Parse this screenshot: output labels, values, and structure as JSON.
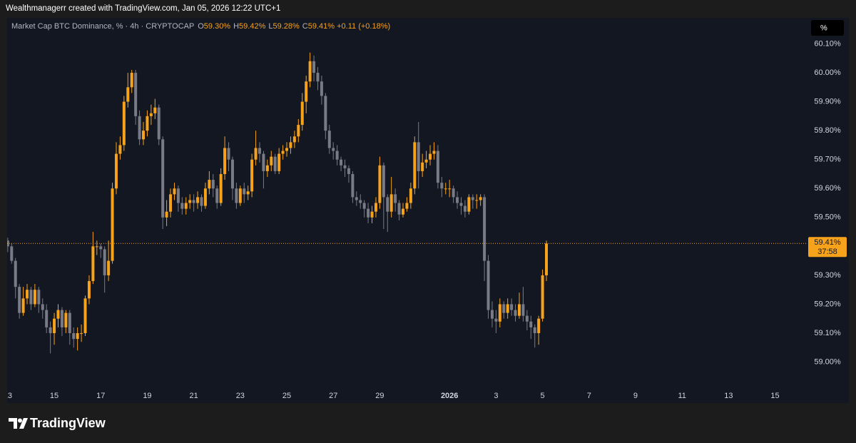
{
  "header": "Wealthmanagerr created with TradingView.com, Jan 05, 2026 12:22 UTC+1",
  "footer": "TradingView",
  "scale_button": "%",
  "chart_data": {
    "type": "candlestick",
    "title": "Market Cap BTC Dominance, % · 4h · CRYPTOCAP",
    "ohlc": [
      {
        "key": "O",
        "value": 59.3,
        "label": "59.30%"
      },
      {
        "key": "H",
        "value": 59.42,
        "label": "59.42%"
      },
      {
        "key": "L",
        "value": 59.28,
        "label": "59.28%"
      },
      {
        "key": "C",
        "value": 59.41,
        "label": "59.41%"
      }
    ],
    "change": {
      "value": 0.11,
      "label": "+0.11 (+0.18%)"
    },
    "last_price": {
      "value": 59.41,
      "label": "59.41%"
    },
    "countdown": "37:58",
    "up_color": "#f7a21b",
    "down_color": "#787b86",
    "grid": false,
    "xlim": [
      -2,
      206
    ],
    "ylim": [
      58.92,
      60.19
    ],
    "xticks": [
      {
        "value": 0,
        "label": "13"
      },
      {
        "value": 12,
        "label": "15"
      },
      {
        "value": 24,
        "label": "17"
      },
      {
        "value": 36,
        "label": "19"
      },
      {
        "value": 48,
        "label": "21"
      },
      {
        "value": 60,
        "label": "23"
      },
      {
        "value": 72,
        "label": "25"
      },
      {
        "value": 84,
        "label": "27"
      },
      {
        "value": 96,
        "label": "29"
      },
      {
        "value": 114,
        "label": "2026"
      },
      {
        "value": 126,
        "label": "3"
      },
      {
        "value": 138,
        "label": "5"
      },
      {
        "value": 150,
        "label": "7"
      },
      {
        "value": 162,
        "label": "9"
      },
      {
        "value": 174,
        "label": "11"
      },
      {
        "value": 186,
        "label": "13"
      },
      {
        "value": 198,
        "label": "15"
      }
    ],
    "yticks": [
      {
        "value": 59.0,
        "label": "59.00%"
      },
      {
        "value": 59.1,
        "label": "59.10%"
      },
      {
        "value": 59.2,
        "label": "59.20%"
      },
      {
        "value": 59.3,
        "label": "59.30%"
      },
      {
        "value": 59.5,
        "label": "59.50%"
      },
      {
        "value": 59.6,
        "label": "59.60%"
      },
      {
        "value": 59.7,
        "label": "59.70%"
      },
      {
        "value": 59.8,
        "label": "59.80%"
      },
      {
        "value": 59.9,
        "label": "59.90%"
      },
      {
        "value": 60.0,
        "label": "60.00%"
      },
      {
        "value": 60.1,
        "label": "60.10%"
      }
    ],
    "series": [
      {
        "name": "Market Cap BTC Dominance",
        "open": [
          59.42,
          59.4,
          59.35,
          59.26,
          59.17,
          59.22,
          59.25,
          59.2,
          59.25,
          59.2,
          59.18,
          59.12,
          59.1,
          59.15,
          59.18,
          59.12,
          59.17,
          59.1,
          59.08,
          59.1,
          59.1,
          59.22,
          59.28,
          59.4,
          59.4,
          59.39,
          59.3,
          59.35,
          59.6,
          59.72,
          59.75,
          59.9,
          59.95,
          60.0,
          59.85,
          59.77,
          59.8,
          59.85,
          59.86,
          59.88,
          59.77,
          59.5,
          59.52,
          59.58,
          59.6,
          59.55,
          59.53,
          59.55,
          59.56,
          59.55,
          59.57,
          59.54,
          59.6,
          59.63,
          59.6,
          59.55,
          59.65,
          59.74,
          59.7,
          59.6,
          59.55,
          59.6,
          59.58,
          59.59,
          59.7,
          59.74,
          59.72,
          59.66,
          59.68,
          59.71,
          59.66,
          59.72,
          59.73,
          59.74,
          59.76,
          59.78,
          59.82,
          59.9,
          59.97,
          60.04,
          60.0,
          59.97,
          59.92,
          59.8,
          59.74,
          59.73,
          59.7,
          59.68,
          59.67,
          59.65,
          59.57,
          59.56,
          59.55,
          59.53,
          59.5,
          59.52,
          59.55,
          59.68,
          59.57,
          59.52,
          59.58,
          59.55,
          59.51,
          59.53,
          59.55,
          59.6,
          59.76,
          59.66,
          59.69,
          59.7,
          59.72,
          59.73,
          59.62,
          59.6,
          59.6,
          59.6,
          59.57,
          59.55,
          59.54,
          59.52,
          59.57,
          59.56,
          59.56,
          59.57,
          59.35,
          59.18,
          59.15,
          59.14,
          59.2,
          59.17,
          59.2,
          59.18,
          59.16,
          59.2,
          59.16,
          59.14,
          59.12,
          59.1,
          59.15,
          59.3
        ],
        "high": [
          59.43,
          59.41,
          59.36,
          59.27,
          59.26,
          59.27,
          59.26,
          59.27,
          59.26,
          59.22,
          59.2,
          59.14,
          59.17,
          59.2,
          59.19,
          59.18,
          59.18,
          59.12,
          59.12,
          59.13,
          59.23,
          59.3,
          59.45,
          59.42,
          59.41,
          59.4,
          59.42,
          59.62,
          59.76,
          59.78,
          59.92,
          60.0,
          60.01,
          60.01,
          59.87,
          59.83,
          59.87,
          59.89,
          59.91,
          59.89,
          59.78,
          59.56,
          59.6,
          59.62,
          59.61,
          59.57,
          59.57,
          59.58,
          59.58,
          59.59,
          59.58,
          59.62,
          59.66,
          59.65,
          59.61,
          59.67,
          59.78,
          59.76,
          59.71,
          59.62,
          59.61,
          59.62,
          59.61,
          59.72,
          59.8,
          59.76,
          59.73,
          59.7,
          59.73,
          59.72,
          59.74,
          59.75,
          59.76,
          59.78,
          59.8,
          59.84,
          59.93,
          59.99,
          60.07,
          60.06,
          60.02,
          59.99,
          59.93,
          59.82,
          59.76,
          59.75,
          59.71,
          59.7,
          59.68,
          59.66,
          59.59,
          59.58,
          59.56,
          59.55,
          59.54,
          59.57,
          59.71,
          59.69,
          59.58,
          59.64,
          59.6,
          59.56,
          59.55,
          59.57,
          59.62,
          59.78,
          59.83,
          59.72,
          59.73,
          59.75,
          59.76,
          59.75,
          59.64,
          59.62,
          59.63,
          59.61,
          59.59,
          59.57,
          59.56,
          59.58,
          59.58,
          59.58,
          59.58,
          59.58,
          59.37,
          59.21,
          59.18,
          59.22,
          59.21,
          59.22,
          59.22,
          59.2,
          59.24,
          59.26,
          59.18,
          59.16,
          59.13,
          59.16,
          59.32,
          59.42
        ],
        "low": [
          59.38,
          59.34,
          59.22,
          59.15,
          59.16,
          59.2,
          59.18,
          59.19,
          59.17,
          59.15,
          59.1,
          59.03,
          59.06,
          59.12,
          59.09,
          59.1,
          59.06,
          59.05,
          59.04,
          59.07,
          59.09,
          59.2,
          59.27,
          59.37,
          59.36,
          59.24,
          59.28,
          59.34,
          59.58,
          59.7,
          59.73,
          59.88,
          59.93,
          59.82,
          59.75,
          59.75,
          59.78,
          59.82,
          59.84,
          59.75,
          59.46,
          59.47,
          59.5,
          59.56,
          59.52,
          59.51,
          59.51,
          59.53,
          59.52,
          59.53,
          59.52,
          59.53,
          59.58,
          59.57,
          59.53,
          59.54,
          59.63,
          59.66,
          59.56,
          59.53,
          59.54,
          59.55,
          59.56,
          59.57,
          59.68,
          59.69,
          59.6,
          59.64,
          59.66,
          59.65,
          59.65,
          59.7,
          59.71,
          59.72,
          59.74,
          59.76,
          59.8,
          59.86,
          59.95,
          59.97,
          59.94,
          59.89,
          59.77,
          59.72,
          59.7,
          59.68,
          59.66,
          59.64,
          59.62,
          59.55,
          59.54,
          59.53,
          59.5,
          59.48,
          59.48,
          59.5,
          59.53,
          59.46,
          59.45,
          59.5,
          59.52,
          59.49,
          59.5,
          59.52,
          59.53,
          59.58,
          59.6,
          59.64,
          59.67,
          59.68,
          59.7,
          59.6,
          59.57,
          59.58,
          59.57,
          59.55,
          59.53,
          59.51,
          59.5,
          59.51,
          59.53,
          59.53,
          59.54,
          59.28,
          59.15,
          59.12,
          59.1,
          59.12,
          59.15,
          59.15,
          59.16,
          59.14,
          59.15,
          59.14,
          59.11,
          59.08,
          59.05,
          59.06,
          59.14,
          59.28
        ],
        "close": [
          59.4,
          59.35,
          59.26,
          59.17,
          59.22,
          59.25,
          59.2,
          59.25,
          59.2,
          59.18,
          59.12,
          59.1,
          59.15,
          59.18,
          59.12,
          59.17,
          59.1,
          59.08,
          59.1,
          59.1,
          59.22,
          59.28,
          59.4,
          59.4,
          59.39,
          59.3,
          59.35,
          59.6,
          59.72,
          59.75,
          59.9,
          59.95,
          60.0,
          59.85,
          59.77,
          59.8,
          59.85,
          59.86,
          59.88,
          59.77,
          59.5,
          59.52,
          59.58,
          59.6,
          59.55,
          59.53,
          59.55,
          59.56,
          59.55,
          59.57,
          59.54,
          59.6,
          59.63,
          59.6,
          59.55,
          59.65,
          59.74,
          59.7,
          59.6,
          59.55,
          59.6,
          59.58,
          59.59,
          59.7,
          59.74,
          59.72,
          59.66,
          59.68,
          59.71,
          59.66,
          59.72,
          59.73,
          59.74,
          59.76,
          59.78,
          59.82,
          59.9,
          59.97,
          60.04,
          60.0,
          59.97,
          59.92,
          59.8,
          59.74,
          59.73,
          59.7,
          59.68,
          59.67,
          59.65,
          59.57,
          59.56,
          59.55,
          59.53,
          59.5,
          59.52,
          59.55,
          59.68,
          59.57,
          59.52,
          59.58,
          59.55,
          59.51,
          59.53,
          59.55,
          59.6,
          59.76,
          59.66,
          59.69,
          59.7,
          59.72,
          59.73,
          59.62,
          59.6,
          59.6,
          59.6,
          59.57,
          59.55,
          59.54,
          59.52,
          59.57,
          59.56,
          59.56,
          59.57,
          59.35,
          59.18,
          59.15,
          59.14,
          59.2,
          59.17,
          59.2,
          59.18,
          59.16,
          59.2,
          59.16,
          59.14,
          59.12,
          59.1,
          59.15,
          59.3,
          59.41
        ]
      }
    ]
  }
}
